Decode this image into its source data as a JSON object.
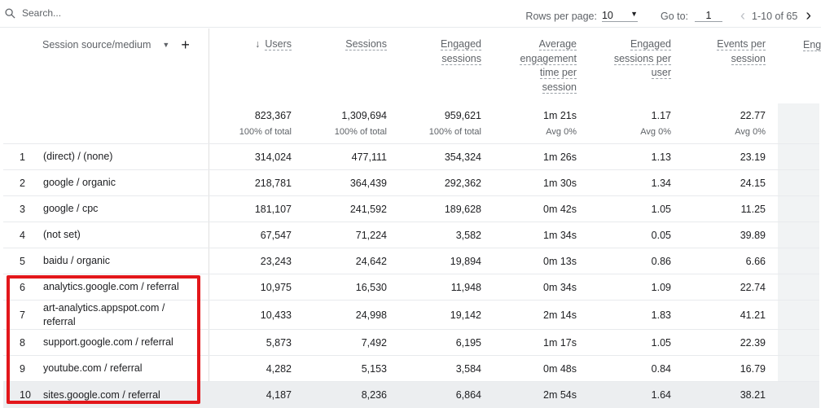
{
  "search": {
    "placeholder": "Search..."
  },
  "pager": {
    "rows_label": "Rows per page:",
    "rows_value": "10",
    "goto_label": "Go to:",
    "goto_value": "1",
    "range": "1-10 of 65"
  },
  "columns": {
    "dimension": "Session source/medium",
    "metrics": [
      "Users",
      "Sessions",
      "Engaged sessions",
      "Average engagement time per session",
      "Engaged sessions per user",
      "Events per session",
      "Eng"
    ]
  },
  "header_lines": [
    [
      "Users"
    ],
    [
      "Sessions"
    ],
    [
      "Engaged",
      "sessions"
    ],
    [
      "Average",
      "engagement",
      "time per",
      "session"
    ],
    [
      "Engaged",
      "sessions per",
      "user"
    ],
    [
      "Events per",
      "session"
    ]
  ],
  "totals": [
    {
      "v": "823,367",
      "s": "100% of total"
    },
    {
      "v": "1,309,694",
      "s": "100% of total"
    },
    {
      "v": "959,621",
      "s": "100% of total"
    },
    {
      "v": "1m 21s",
      "s": "Avg 0%"
    },
    {
      "v": "1.17",
      "s": "Avg 0%"
    },
    {
      "v": "22.77",
      "s": "Avg 0%"
    }
  ],
  "rows": [
    {
      "n": "1",
      "src": "(direct) / (none)",
      "m": [
        "314,024",
        "477,111",
        "354,324",
        "1m 26s",
        "1.13",
        "23.19"
      ]
    },
    {
      "n": "2",
      "src": "google / organic",
      "m": [
        "218,781",
        "364,439",
        "292,362",
        "1m 30s",
        "1.34",
        "24.15"
      ]
    },
    {
      "n": "3",
      "src": "google / cpc",
      "m": [
        "181,107",
        "241,592",
        "189,628",
        "0m 42s",
        "1.05",
        "11.25"
      ]
    },
    {
      "n": "4",
      "src": "(not set)",
      "m": [
        "67,547",
        "71,224",
        "3,582",
        "1m 34s",
        "0.05",
        "39.89"
      ]
    },
    {
      "n": "5",
      "src": "baidu / organic",
      "m": [
        "23,243",
        "24,642",
        "19,894",
        "0m 13s",
        "0.86",
        "6.66"
      ]
    },
    {
      "n": "6",
      "src": "analytics.google.com / referral",
      "m": [
        "10,975",
        "16,530",
        "11,948",
        "0m 34s",
        "1.09",
        "22.74"
      ]
    },
    {
      "n": "7",
      "src": "art-analytics.appspot.com / referral",
      "m": [
        "10,433",
        "24,998",
        "19,142",
        "2m 14s",
        "1.83",
        "41.21"
      ]
    },
    {
      "n": "8",
      "src": "support.google.com / referral",
      "m": [
        "5,873",
        "7,492",
        "6,195",
        "1m 17s",
        "1.05",
        "22.39"
      ]
    },
    {
      "n": "9",
      "src": "youtube.com / referral",
      "m": [
        "4,282",
        "5,153",
        "3,584",
        "0m 48s",
        "0.84",
        "16.79"
      ]
    },
    {
      "n": "10",
      "src": "sites.google.com / referral",
      "m": [
        "4,187",
        "8,236",
        "6,864",
        "2m 54s",
        "1.64",
        "38.21"
      ]
    }
  ],
  "colors": {
    "highlight": "#e3171b",
    "text": "#202124",
    "muted": "#5f6368"
  }
}
